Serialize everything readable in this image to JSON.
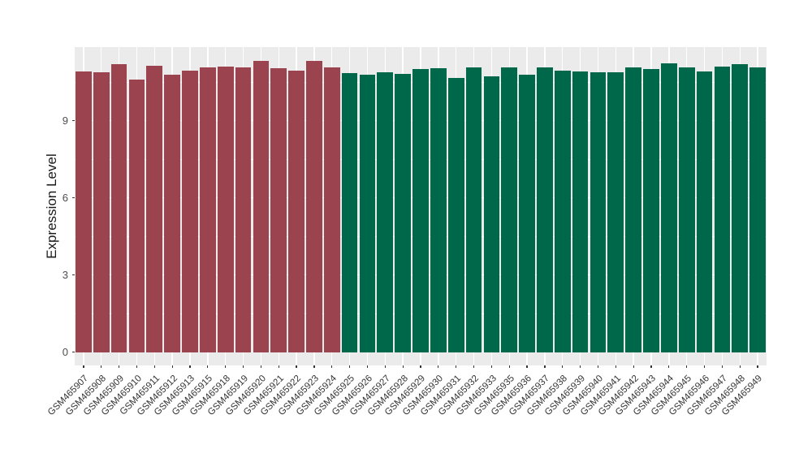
{
  "figure": {
    "background": "#ffffff",
    "panel_background": "#ebebeb",
    "grid_color": "#ffffff",
    "tick_color": "#333333",
    "axis_text_color": "#4d4d4d",
    "x_label_color": "#333333",
    "title_color": "#1a1a1a"
  },
  "chart_data": {
    "type": "bar",
    "title": "",
    "xlabel": "",
    "ylabel": "Expression Level",
    "ylim": [
      0,
      11.86
    ],
    "yticks": [
      0,
      3,
      6,
      9
    ],
    "yticks_minor": [
      1.5,
      4.5,
      7.5,
      10.5
    ],
    "grid": "on",
    "legend": "none",
    "group_colors": {
      "A": "#9c4350",
      "B": "#00684a"
    },
    "bars": [
      {
        "label": "GSM465907",
        "value": 10.91,
        "group": "A"
      },
      {
        "label": "GSM465908",
        "value": 10.88,
        "group": "A"
      },
      {
        "label": "GSM465909",
        "value": 11.2,
        "group": "A"
      },
      {
        "label": "GSM465910",
        "value": 10.61,
        "group": "A"
      },
      {
        "label": "GSM465911",
        "value": 11.13,
        "group": "A"
      },
      {
        "label": "GSM465912",
        "value": 10.79,
        "group": "A"
      },
      {
        "label": "GSM465913",
        "value": 10.95,
        "group": "A"
      },
      {
        "label": "GSM465915",
        "value": 11.07,
        "group": "A"
      },
      {
        "label": "GSM465918",
        "value": 11.11,
        "group": "A"
      },
      {
        "label": "GSM465919",
        "value": 11.08,
        "group": "A"
      },
      {
        "label": "GSM465920",
        "value": 11.33,
        "group": "A"
      },
      {
        "label": "GSM465921",
        "value": 11.03,
        "group": "A"
      },
      {
        "label": "GSM465922",
        "value": 10.95,
        "group": "A"
      },
      {
        "label": "GSM465923",
        "value": 11.33,
        "group": "A"
      },
      {
        "label": "GSM465924",
        "value": 11.06,
        "group": "A"
      },
      {
        "label": "GSM465925",
        "value": 10.85,
        "group": "B"
      },
      {
        "label": "GSM465926",
        "value": 10.79,
        "group": "B"
      },
      {
        "label": "GSM465927",
        "value": 10.87,
        "group": "B"
      },
      {
        "label": "GSM465928",
        "value": 10.82,
        "group": "B"
      },
      {
        "label": "GSM465929",
        "value": 11.01,
        "group": "B"
      },
      {
        "label": "GSM465930",
        "value": 11.03,
        "group": "B"
      },
      {
        "label": "GSM465931",
        "value": 10.67,
        "group": "B"
      },
      {
        "label": "GSM465932",
        "value": 11.08,
        "group": "B"
      },
      {
        "label": "GSM465933",
        "value": 10.71,
        "group": "B"
      },
      {
        "label": "GSM465935",
        "value": 11.06,
        "group": "B"
      },
      {
        "label": "GSM465936",
        "value": 10.78,
        "group": "B"
      },
      {
        "label": "GSM465937",
        "value": 11.08,
        "group": "B"
      },
      {
        "label": "GSM465938",
        "value": 10.95,
        "group": "B"
      },
      {
        "label": "GSM465939",
        "value": 10.9,
        "group": "B"
      },
      {
        "label": "GSM465940",
        "value": 10.87,
        "group": "B"
      },
      {
        "label": "GSM465941",
        "value": 10.88,
        "group": "B"
      },
      {
        "label": "GSM465942",
        "value": 11.08,
        "group": "B"
      },
      {
        "label": "GSM465943",
        "value": 11.01,
        "group": "B"
      },
      {
        "label": "GSM465944",
        "value": 11.22,
        "group": "B"
      },
      {
        "label": "GSM465945",
        "value": 11.08,
        "group": "B"
      },
      {
        "label": "GSM465946",
        "value": 10.9,
        "group": "B"
      },
      {
        "label": "GSM465947",
        "value": 11.11,
        "group": "B"
      },
      {
        "label": "GSM465948",
        "value": 11.19,
        "group": "B"
      },
      {
        "label": "GSM465949",
        "value": 11.06,
        "group": "B"
      }
    ]
  }
}
